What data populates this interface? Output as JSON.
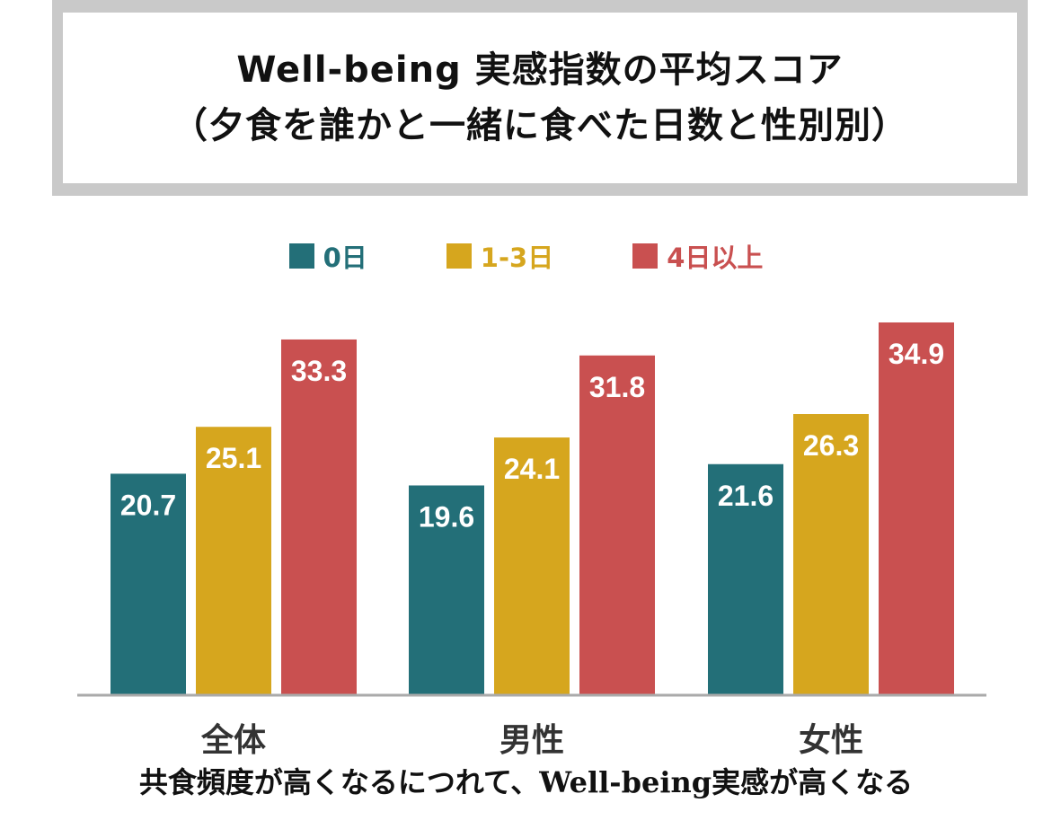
{
  "title": {
    "line1": "Well-being 実感指数の平均スコア",
    "line2": "（夕食を誰かと一緒に食べた日数と性別別）"
  },
  "caption": "共食頻度が高くなるにつれて、Well-being実感が高くなる",
  "chart_data": {
    "type": "bar",
    "categories": [
      "全体",
      "男性",
      "女性"
    ],
    "series": [
      {
        "name": "0日",
        "color": "#236f78",
        "values": [
          20.7,
          19.6,
          21.6
        ]
      },
      {
        "name": "1-3日",
        "color": "#d6a61e",
        "values": [
          25.1,
          24.1,
          26.3
        ]
      },
      {
        "name": "4日以上",
        "color": "#c95050",
        "values": [
          33.3,
          31.8,
          34.9
        ]
      }
    ],
    "ylim": [
      0,
      36.5
    ],
    "grid": false,
    "legend_position": "top-center",
    "axis_color": "#aaaaaa"
  }
}
